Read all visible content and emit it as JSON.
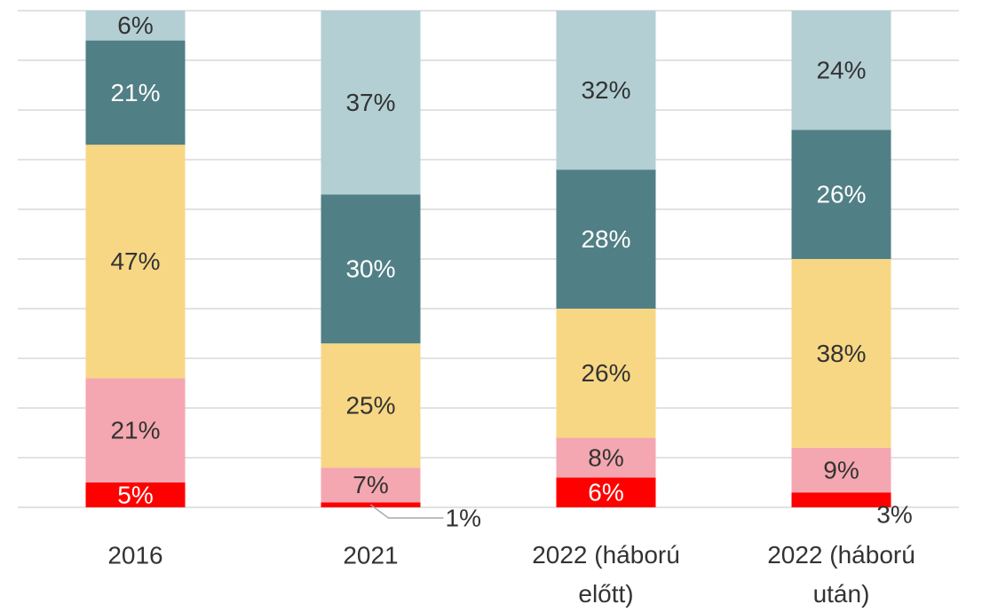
{
  "chart_data": {
    "type": "stacked_bar",
    "categories": [
      "2016",
      "2021",
      "2022 (háború előtt)",
      "2022 (háború után)"
    ],
    "series": [
      {
        "color": "#ff0000",
        "values": [
          5,
          1,
          6,
          3
        ],
        "value_labels": [
          "5%",
          "1%",
          "6%",
          "3%"
        ]
      },
      {
        "color": "#f4a7b0",
        "values": [
          21,
          7,
          8,
          9
        ],
        "value_labels": [
          "21%",
          "7%",
          "8%",
          "9%"
        ]
      },
      {
        "color": "#f7d784",
        "values": [
          47,
          25,
          26,
          38
        ],
        "value_labels": [
          "47%",
          "25%",
          "26%",
          "38%"
        ]
      },
      {
        "color": "#517f86",
        "values": [
          21,
          30,
          28,
          26
        ],
        "value_labels": [
          "21%",
          "30%",
          "28%",
          "26%"
        ]
      },
      {
        "color": "#b3cfd3",
        "values": [
          6,
          37,
          32,
          24
        ],
        "value_labels": [
          "6%",
          "37%",
          "32%",
          "24%"
        ]
      }
    ],
    "ylim": [
      0,
      100
    ],
    "yticks": [
      0,
      10,
      20,
      30,
      40,
      50,
      60,
      70,
      80,
      90,
      100
    ],
    "grid": true
  }
}
